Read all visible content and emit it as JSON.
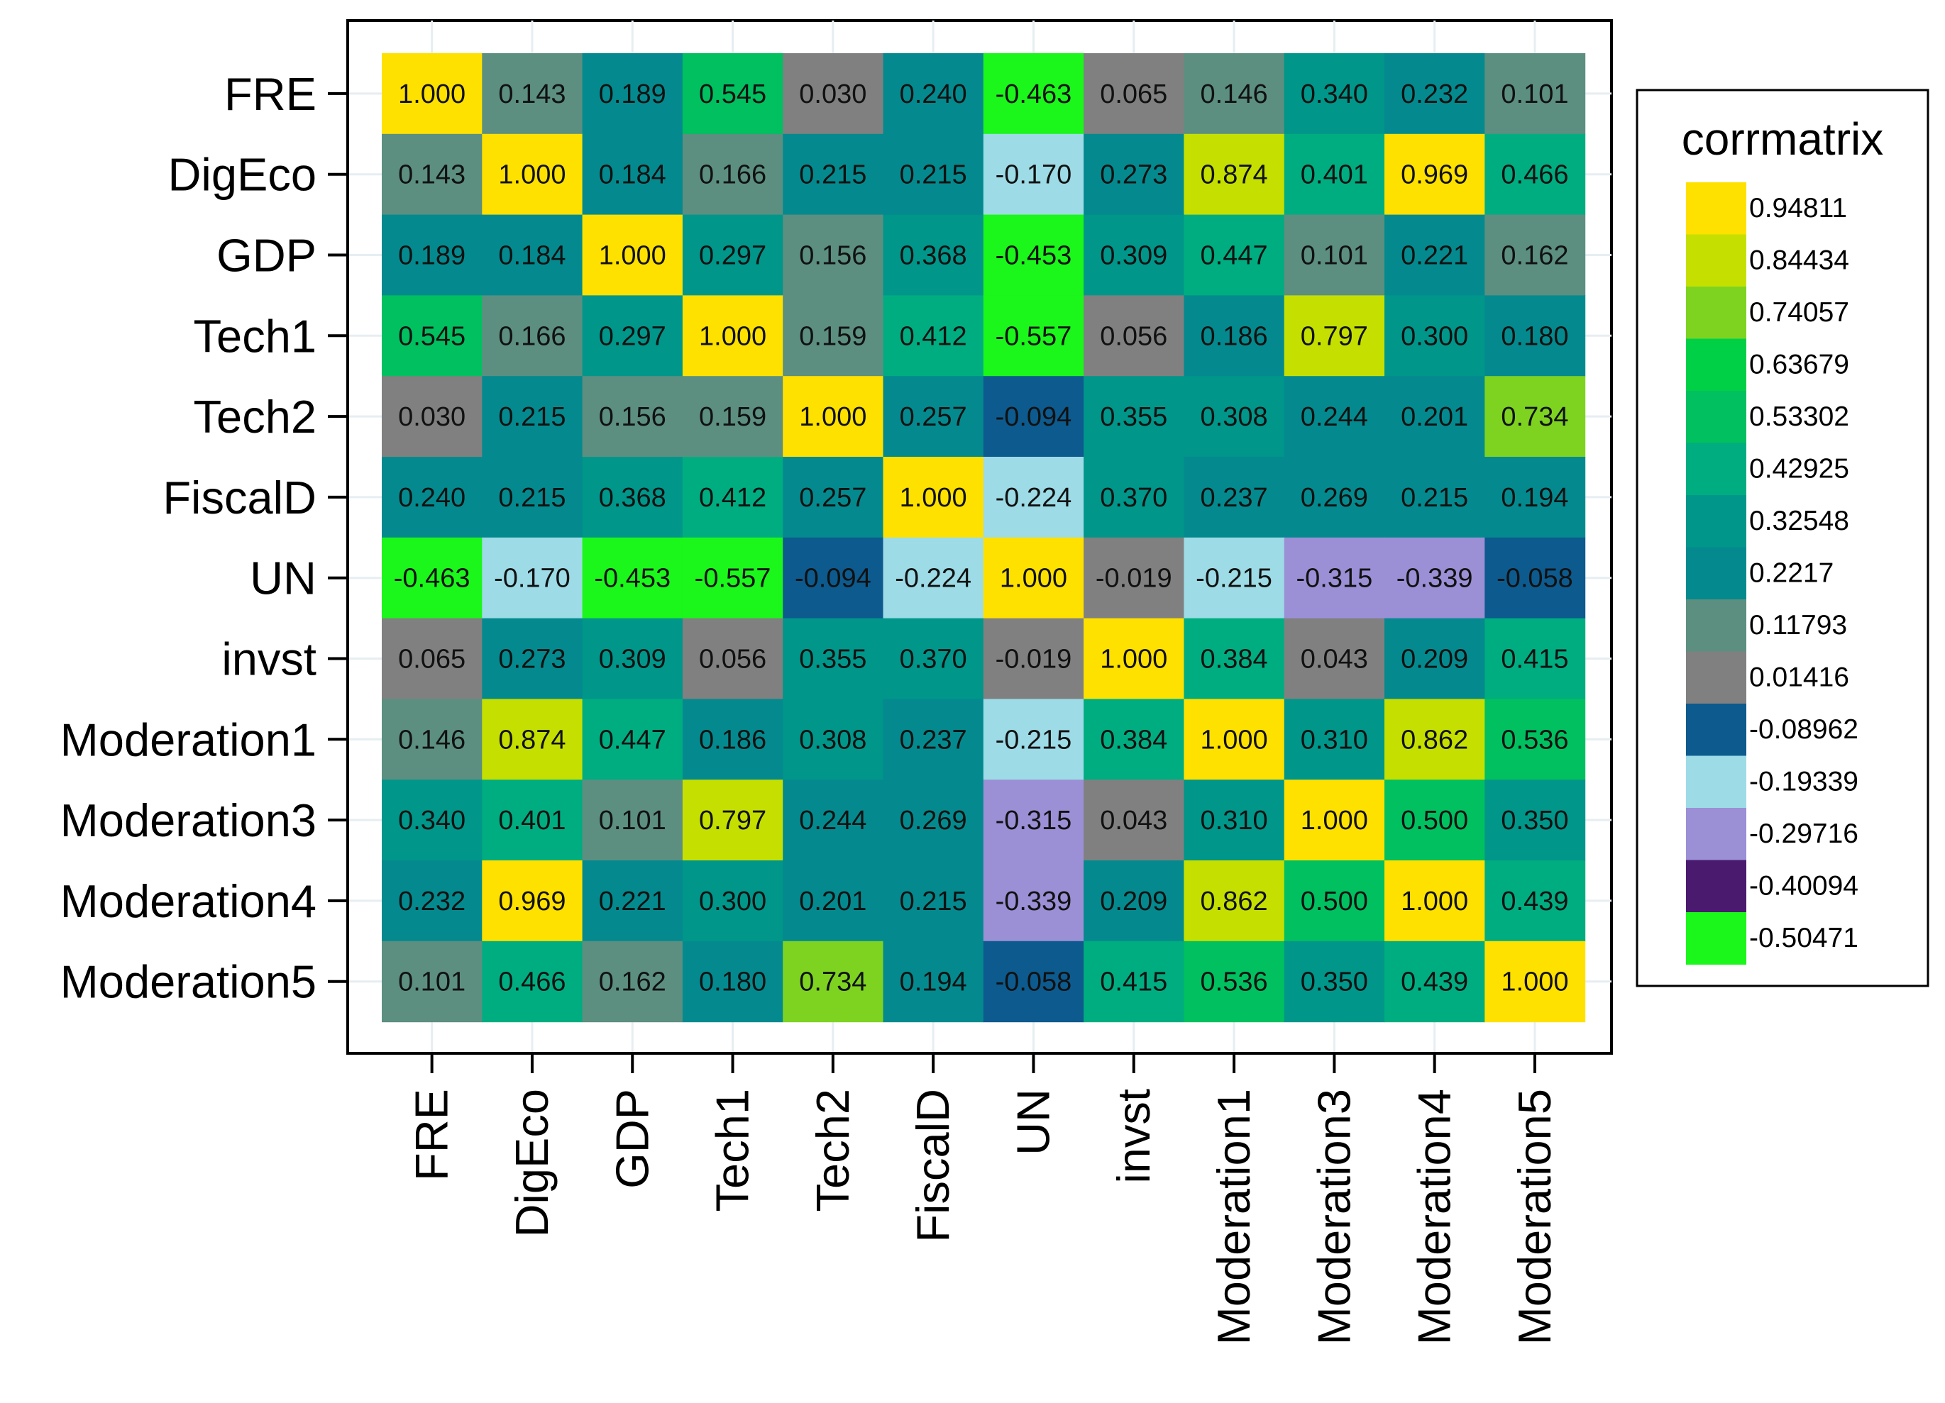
{
  "chart_data": {
    "type": "heatmap",
    "title": "",
    "xlabel": "",
    "ylabel": "",
    "rows": [
      "FRE",
      "DigEco",
      "GDP",
      "Tech1",
      "Tech2",
      "FiscalD",
      "UN",
      "invst",
      "Moderation1",
      "Moderation3",
      "Moderation4",
      "Moderation5"
    ],
    "columns": [
      "FRE",
      "DigEco",
      "GDP",
      "Tech1",
      "Tech2",
      "FiscalD",
      "UN",
      "invst",
      "Moderation1",
      "Moderation3",
      "Moderation4",
      "Moderation5"
    ],
    "values": [
      [
        1.0,
        0.143,
        0.189,
        0.545,
        0.03,
        0.24,
        -0.463,
        0.065,
        0.146,
        0.34,
        0.232,
        0.101
      ],
      [
        0.143,
        1.0,
        0.184,
        0.166,
        0.215,
        0.215,
        -0.17,
        0.273,
        0.874,
        0.401,
        0.969,
        0.466
      ],
      [
        0.189,
        0.184,
        1.0,
        0.297,
        0.156,
        0.368,
        -0.453,
        0.309,
        0.447,
        0.101,
        0.221,
        0.162
      ],
      [
        0.545,
        0.166,
        0.297,
        1.0,
        0.159,
        0.412,
        -0.557,
        0.056,
        0.186,
        0.797,
        0.3,
        0.18
      ],
      [
        0.03,
        0.215,
        0.156,
        0.159,
        1.0,
        0.257,
        -0.094,
        0.355,
        0.308,
        0.244,
        0.201,
        0.734
      ],
      [
        0.24,
        0.215,
        0.368,
        0.412,
        0.257,
        1.0,
        -0.224,
        0.37,
        0.237,
        0.269,
        0.215,
        0.194
      ],
      [
        -0.463,
        -0.17,
        -0.453,
        -0.557,
        -0.094,
        -0.224,
        1.0,
        -0.019,
        -0.215,
        -0.315,
        -0.339,
        -0.058
      ],
      [
        0.065,
        0.273,
        0.309,
        0.056,
        0.355,
        0.37,
        -0.019,
        1.0,
        0.384,
        0.043,
        0.209,
        0.415
      ],
      [
        0.146,
        0.874,
        0.447,
        0.186,
        0.308,
        0.237,
        -0.215,
        0.384,
        1.0,
        0.31,
        0.862,
        0.536
      ],
      [
        0.34,
        0.401,
        0.101,
        0.797,
        0.244,
        0.269,
        -0.315,
        0.043,
        0.31,
        1.0,
        0.5,
        0.35
      ],
      [
        0.232,
        0.969,
        0.221,
        0.3,
        0.201,
        0.215,
        -0.339,
        0.209,
        0.862,
        0.5,
        1.0,
        0.439
      ],
      [
        0.101,
        0.466,
        0.162,
        0.18,
        0.734,
        0.194,
        -0.058,
        0.415,
        0.536,
        0.35,
        0.439,
        1.0
      ]
    ],
    "legend": {
      "title": "corrmatrix",
      "position": "right",
      "thresholds": [
        0.8967,
        0.7929,
        0.6892,
        0.5855,
        0.4817,
        0.3779,
        0.2742,
        0.1704,
        0.0666,
        -0.0377,
        -0.1415,
        -0.2453,
        -0.3491,
        -0.4528
      ],
      "colors": [
        "#ffe100",
        "#c5e000",
        "#7ed321",
        "#00d046",
        "#00c060",
        "#00ad80",
        "#00968a",
        "#048a8e",
        "#5c8f80",
        "#808080",
        "#0d5a8e",
        "#9ddbe6",
        "#9b8fd6",
        "#4a1a6e",
        "#1bf61b"
      ],
      "labels": [
        "0.94811",
        "0.84434",
        "0.74057",
        "0.63679",
        "0.53302",
        "0.42925",
        "0.32548",
        "0.2217",
        "0.11793",
        "0.01416",
        "-0.08962",
        "-0.19339",
        "-0.29716",
        "-0.40094",
        "-0.50471"
      ]
    }
  }
}
